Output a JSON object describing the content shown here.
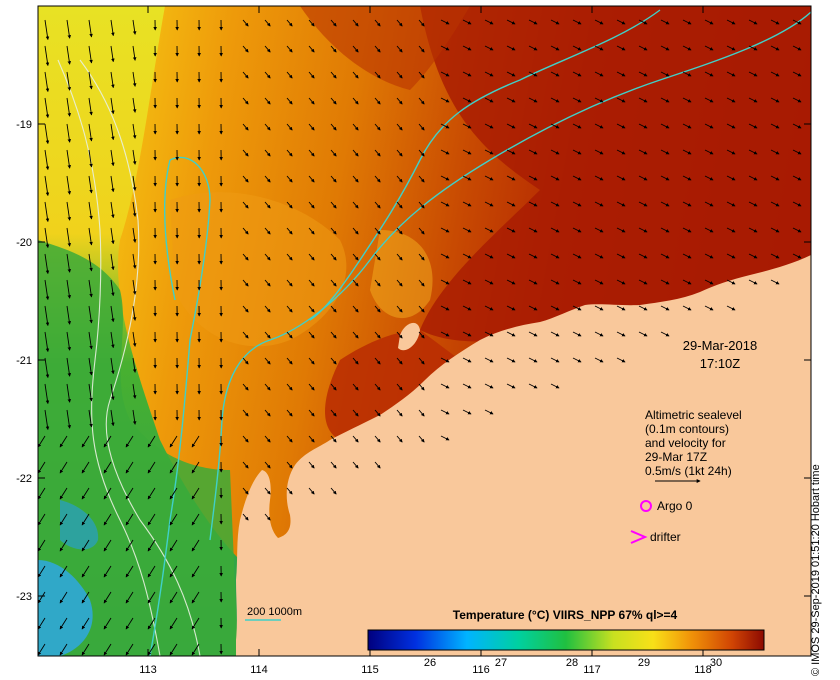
{
  "map": {
    "date": "29-Mar-2018",
    "time": "17:10Z",
    "y_ticks": [
      "-19",
      "-20",
      "-21",
      "-22",
      "-23"
    ],
    "x_ticks": [
      "113",
      "114",
      "115",
      "116",
      "117",
      "118"
    ],
    "legend_lines": [
      "Altimetric sealevel",
      "(0.1m contours)",
      "and velocity for",
      "29-Mar 17Z",
      "0.5m/s (1kt 24h)"
    ],
    "argo_label": "Argo 0",
    "drifter_label": "drifter",
    "isobath_label": "200  1000m",
    "colorbar": {
      "title": "Temperature (°C) VIIRS_NPP 67% ql>=4",
      "ticks": [
        "26",
        "27",
        "28",
        "29",
        "30"
      ]
    },
    "credit": "© IMOS 29-Sep-2019 01:51:20 Hobart time",
    "colors": {
      "land": "#f9c89b",
      "isobath": "#40d0c8",
      "contour": "#e8f0e0",
      "argo": "#ff00ff",
      "drifter": "#ff00ff"
    },
    "icons": [
      "velocity-arrow-icon",
      "argo-circle-icon",
      "drifter-chevron-icon"
    ]
  }
}
